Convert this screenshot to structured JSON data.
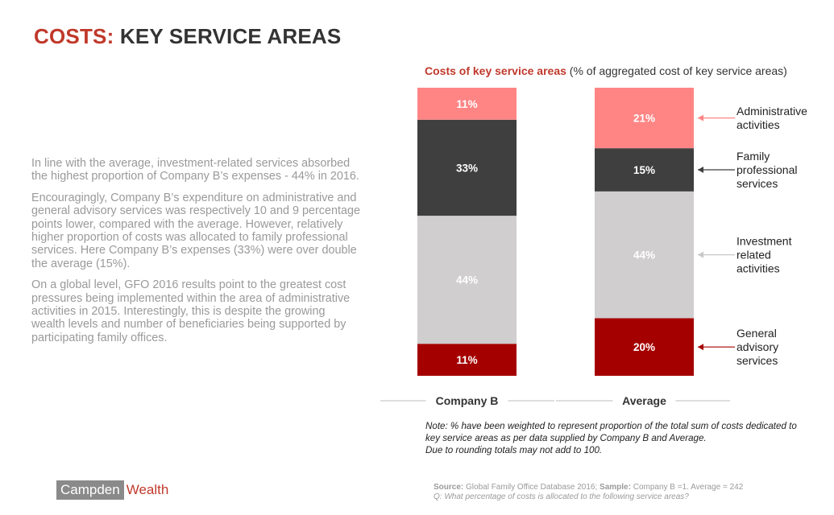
{
  "title": {
    "accent": "COSTS:",
    "rest": "KEY SERVICE AREAS"
  },
  "body": {
    "paragraphs": [
      "In line with the average, investment-related services absorbed the highest proportion of Company B’s expenses - 44% in 2016.",
      "Encouragingly, Company B’s expenditure on administrative and general advisory services was respectively 10 and 9 percentage points lower, compared with the average. However, relatively higher proportion of costs was allocated to family professional services. Here Company B’s expenses (33%) were over double the average (15%).",
      "On a global level, GFO 2016 results point to the greatest cost pressures being implemented within the area of administrative activities in 2015. Interestingly, this is despite the growing wealth levels and number of beneficiaries being supported by participating family offices."
    ]
  },
  "chart_data": {
    "type": "bar",
    "stacked": true,
    "title": "Costs of key service areas",
    "subtitle": "(% of aggregated cost of key service areas)",
    "categories": [
      "Company B",
      "Average"
    ],
    "series": [
      {
        "name": "General advisory services",
        "values": [
          11,
          20
        ],
        "labels": [
          "11%",
          "20%"
        ],
        "color": "#a50000",
        "label_color": "#ffffff"
      },
      {
        "name": "Investment related activities",
        "values": [
          44,
          44
        ],
        "labels": [
          "44%",
          "44%"
        ],
        "color": "#d0cece",
        "label_color": "#ffffff"
      },
      {
        "name": "Family professional services",
        "values": [
          33,
          15
        ],
        "labels": [
          "33%",
          "15%"
        ],
        "color": "#3f3f3f",
        "label_color": "#ffffff"
      },
      {
        "name": "Administrative activities",
        "values": [
          11,
          21
        ],
        "labels": [
          "11%",
          "21%"
        ],
        "color": "#ff8585",
        "label_color": "#ffffff"
      }
    ],
    "legend": [
      {
        "lines": [
          "Administrative",
          "activities"
        ],
        "arrow_color": "#ff8585"
      },
      {
        "lines": [
          "Family",
          "professional",
          "services"
        ],
        "arrow_color": "#3f3f3f"
      },
      {
        "lines": [
          "Investment",
          "related",
          "activities"
        ],
        "arrow_color": "#c8c8c8"
      },
      {
        "lines": [
          "General",
          "advisory",
          "services"
        ],
        "arrow_color": "#a50000"
      }
    ],
    "legend_placement": "right",
    "grid": false
  },
  "note": {
    "lines": [
      "Note: %  have been weighted to represent proportion of the total sum of costs dedicated to",
      "key service areas as per data supplied by Company B and Average.",
      "Due to rounding totals may not add to 100."
    ]
  },
  "logo": {
    "box_text": "Campden",
    "word": "Wealth"
  },
  "source": {
    "label": "Source:",
    "text": "Global Family Office Database 2016;",
    "sample_label": "Sample:",
    "sample_text": "Company B =1. Average = 242",
    "question": "Q: What percentage of costs is allocated to the following service areas?"
  }
}
